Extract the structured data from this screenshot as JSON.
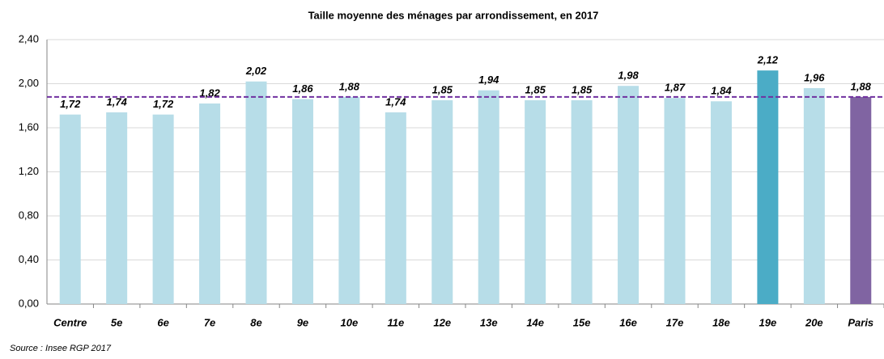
{
  "chart_data": {
    "type": "bar",
    "title": "Taille moyenne des ménages par arrondissement, en 2017",
    "source": "Source : Insee RGP 2017",
    "categories": [
      "Centre",
      "5e",
      "6e",
      "7e",
      "8e",
      "9e",
      "10e",
      "11e",
      "12e",
      "13e",
      "14e",
      "15e",
      "16e",
      "17e",
      "18e",
      "19e",
      "20e",
      "Paris"
    ],
    "values": [
      1.72,
      1.74,
      1.72,
      1.82,
      2.02,
      1.86,
      1.88,
      1.74,
      1.85,
      1.94,
      1.85,
      1.85,
      1.98,
      1.87,
      1.84,
      2.12,
      1.96,
      1.88
    ],
    "value_labels": [
      "1,72",
      "1,74",
      "1,72",
      "1,82",
      "2,02",
      "1,86",
      "1,88",
      "1,74",
      "1,85",
      "1,94",
      "1,85",
      "1,85",
      "1,98",
      "1,87",
      "1,84",
      "2,12",
      "1,96",
      "1,88"
    ],
    "colors": [
      "#b7dde8",
      "#b7dde8",
      "#b7dde8",
      "#b7dde8",
      "#b7dde8",
      "#b7dde8",
      "#b7dde8",
      "#b7dde8",
      "#b7dde8",
      "#b7dde8",
      "#b7dde8",
      "#b7dde8",
      "#b7dde8",
      "#b7dde8",
      "#b7dde8",
      "#4bacc6",
      "#b7dde8",
      "#8064a2"
    ],
    "reference_line": {
      "value": 1.88,
      "color": "#7030a0"
    },
    "ylim": [
      0,
      2.4
    ],
    "yticks": [
      {
        "value": 0,
        "label": "0,00"
      },
      {
        "value": 0.4,
        "label": "0,40"
      },
      {
        "value": 0.8,
        "label": "0,80"
      },
      {
        "value": 1.2,
        "label": "1,20"
      },
      {
        "value": 1.6,
        "label": "1,60"
      },
      {
        "value": 2.0,
        "label": "2,00"
      },
      {
        "value": 2.4,
        "label": "2,40"
      }
    ],
    "grid": true
  }
}
